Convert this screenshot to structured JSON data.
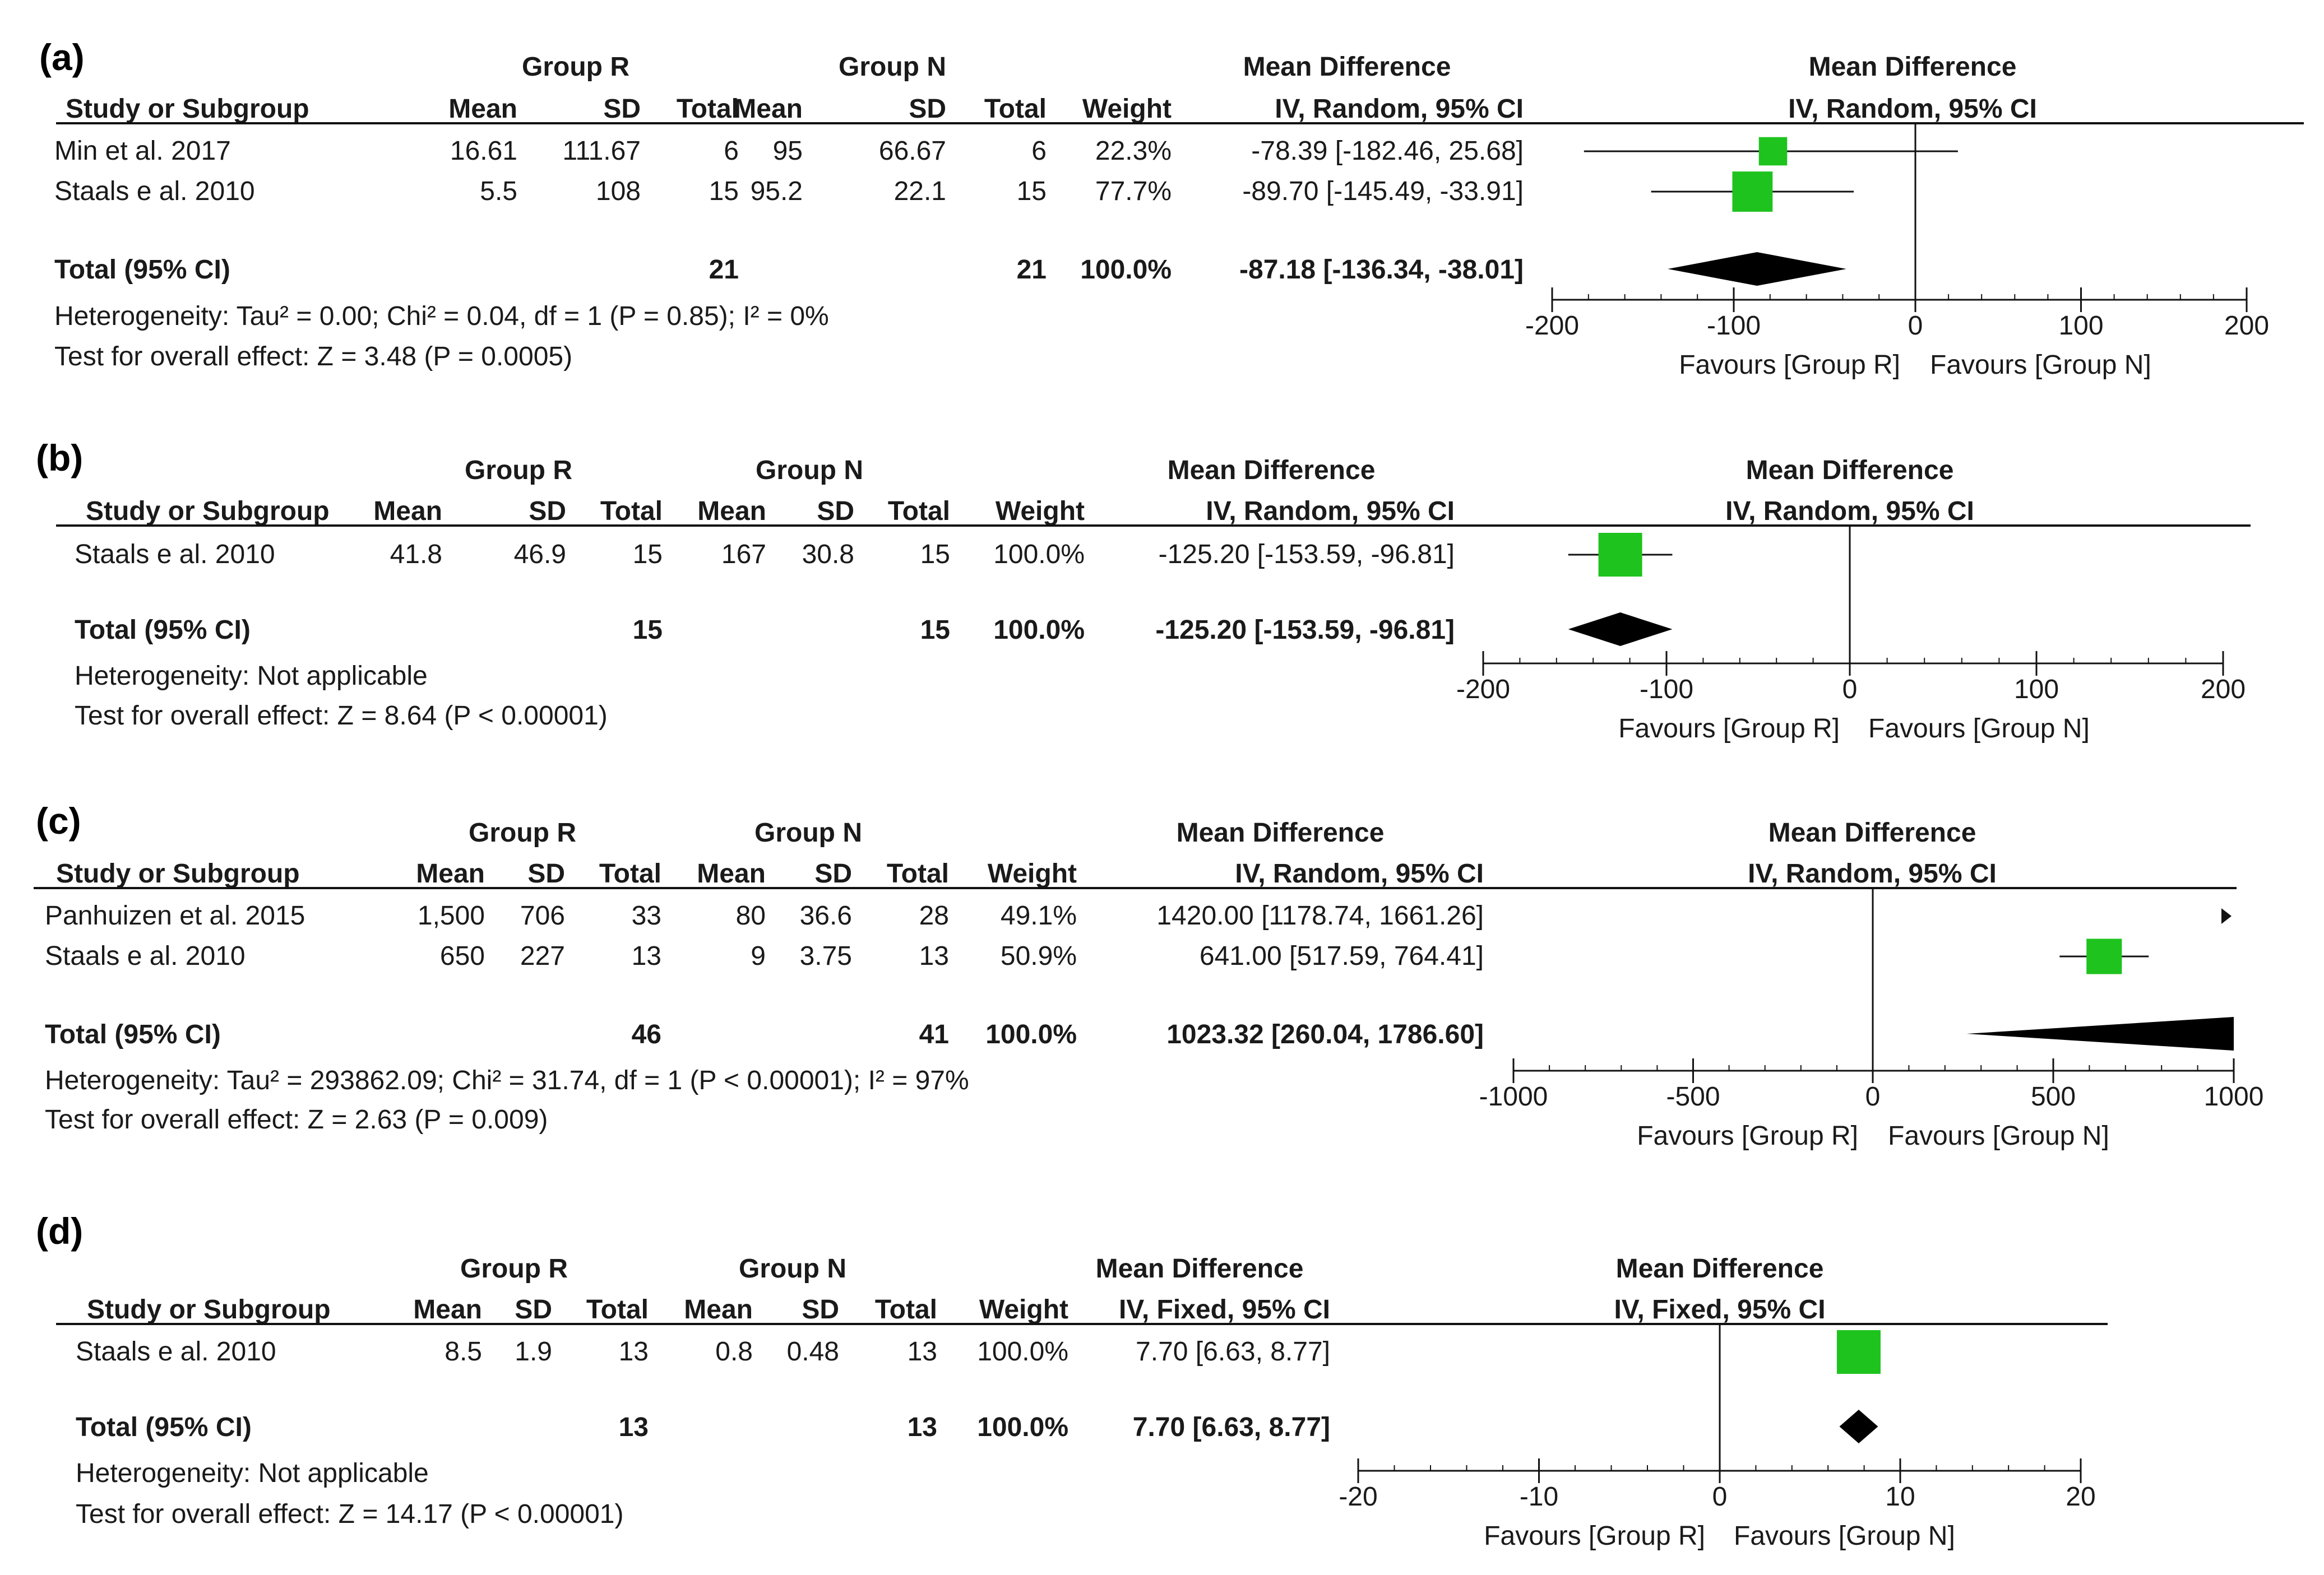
{
  "page": {
    "title": "Forest plots of mean difference, Group R vs Group N"
  },
  "chart_data": [
    {
      "type": "forest",
      "label": "(a)",
      "effect_header": "Mean Difference",
      "method": "IV, Random, 95% CI",
      "studies": [
        {
          "name": "Min et al. 2017",
          "mean_r": "16.61",
          "sd_r": "111.67",
          "total_r": "6",
          "mean_n": "95",
          "sd_n": "66.67",
          "total_n": "6",
          "weight": "22.3%",
          "ci_text": "-78.39 [-182.46, 25.68]",
          "md": -78.39,
          "lo": -182.46,
          "hi": 25.68,
          "w": 22.3
        },
        {
          "name": "Staals e al. 2010",
          "mean_r": "5.5",
          "sd_r": "108",
          "total_r": "15",
          "mean_n": "95.2",
          "sd_n": "22.1",
          "total_n": "15",
          "weight": "77.7%",
          "ci_text": "-89.70 [-145.49, -33.91]",
          "md": -89.7,
          "lo": -145.49,
          "hi": -33.91,
          "w": 77.7
        }
      ],
      "total": {
        "label": "Total (95% CI)",
        "total_r": "21",
        "total_n": "21",
        "weight": "100.0%",
        "ci_text": "-87.18 [-136.34, -38.01]",
        "md": -87.18,
        "lo": -136.34,
        "hi": -38.01
      },
      "heterogeneity": "Heterogeneity: Tau² = 0.00; Chi² = 0.04, df = 1 (P = 0.85); I² = 0%",
      "overall": "Test for overall effect: Z = 3.48 (P = 0.0005)",
      "axis": {
        "min": -200,
        "max": 200,
        "ticks": [
          -200,
          -100,
          0,
          100,
          200
        ],
        "tick_labels": [
          "-200",
          "-100",
          "0",
          "100",
          "200"
        ]
      },
      "favours_left": "Favours [Group R]",
      "favours_right": "Favours [Group N]"
    },
    {
      "type": "forest",
      "label": "(b)",
      "effect_header": "Mean Difference",
      "method": "IV, Random, 95% CI",
      "studies": [
        {
          "name": "Staals e al. 2010",
          "mean_r": "41.8",
          "sd_r": "46.9",
          "total_r": "15",
          "mean_n": "167",
          "sd_n": "30.8",
          "total_n": "15",
          "weight": "100.0%",
          "ci_text": "-125.20 [-153.59, -96.81]",
          "md": -125.2,
          "lo": -153.59,
          "hi": -96.81,
          "w": 100.0
        }
      ],
      "total": {
        "label": "Total (95% CI)",
        "total_r": "15",
        "total_n": "15",
        "weight": "100.0%",
        "ci_text": "-125.20 [-153.59, -96.81]",
        "md": -125.2,
        "lo": -153.59,
        "hi": -96.81
      },
      "heterogeneity": "Heterogeneity: Not applicable",
      "overall": "Test for overall effect: Z = 8.64 (P < 0.00001)",
      "axis": {
        "min": -200,
        "max": 200,
        "ticks": [
          -200,
          -100,
          0,
          100,
          200
        ],
        "tick_labels": [
          "-200",
          "-100",
          "0",
          "100",
          "200"
        ]
      },
      "favours_left": "Favours [Group R]",
      "favours_right": "Favours [Group N]"
    },
    {
      "type": "forest",
      "label": "(c)",
      "effect_header": "Mean Difference",
      "method": "IV, Random, 95% CI",
      "studies": [
        {
          "name": "Panhuizen et al. 2015",
          "mean_r": "1,500",
          "sd_r": "706",
          "total_r": "33",
          "mean_n": "80",
          "sd_n": "36.6",
          "total_n": "28",
          "weight": "49.1%",
          "ci_text": "1420.00 [1178.74, 1661.26]",
          "md": 1420.0,
          "lo": 1178.74,
          "hi": 1661.26,
          "w": 49.1
        },
        {
          "name": "Staals e al. 2010",
          "mean_r": "650",
          "sd_r": "227",
          "total_r": "13",
          "mean_n": "9",
          "sd_n": "3.75",
          "total_n": "13",
          "weight": "50.9%",
          "ci_text": "641.00 [517.59, 764.41]",
          "md": 641.0,
          "lo": 517.59,
          "hi": 764.41,
          "w": 50.9
        }
      ],
      "total": {
        "label": "Total (95% CI)",
        "total_r": "46",
        "total_n": "41",
        "weight": "100.0%",
        "ci_text": "1023.32 [260.04, 1786.60]",
        "md": 1023.32,
        "lo": 260.04,
        "hi": 1786.6
      },
      "heterogeneity": "Heterogeneity: Tau² = 293862.09; Chi² = 31.74, df = 1 (P < 0.00001); I² = 97%",
      "overall": "Test for overall effect: Z = 2.63 (P = 0.009)",
      "axis": {
        "min": -1000,
        "max": 1000,
        "ticks": [
          -1000,
          -500,
          0,
          500,
          1000
        ],
        "tick_labels": [
          "-1000",
          "-500",
          "0",
          "500",
          "1000"
        ]
      },
      "favours_left": "Favours [Group R]",
      "favours_right": "Favours [Group N]"
    },
    {
      "type": "forest",
      "label": "(d)",
      "effect_header": "Mean Difference",
      "method": "IV, Fixed, 95% CI",
      "studies": [
        {
          "name": "Staals e al. 2010",
          "mean_r": "8.5",
          "sd_r": "1.9",
          "total_r": "13",
          "mean_n": "0.8",
          "sd_n": "0.48",
          "total_n": "13",
          "weight": "100.0%",
          "ci_text": "7.70 [6.63, 8.77]",
          "md": 7.7,
          "lo": 6.63,
          "hi": 8.77,
          "w": 100.0
        }
      ],
      "total": {
        "label": "Total (95% CI)",
        "total_r": "13",
        "total_n": "13",
        "weight": "100.0%",
        "ci_text": "7.70 [6.63, 8.77]",
        "md": 7.7,
        "lo": 6.63,
        "hi": 8.77
      },
      "heterogeneity": "Heterogeneity: Not applicable",
      "overall": "Test for overall effect: Z = 14.17 (P < 0.00001)",
      "axis": {
        "min": -20,
        "max": 20,
        "ticks": [
          -20,
          -10,
          0,
          10,
          20
        ],
        "tick_labels": [
          "-20",
          "-10",
          "0",
          "10",
          "20"
        ]
      },
      "favours_left": "Favours [Group R]",
      "favours_right": "Favours [Group N]"
    }
  ],
  "headers": {
    "study": "Study or Subgroup",
    "group_r": "Group R",
    "group_n": "Group N",
    "mean": "Mean",
    "sd": "SD",
    "total": "Total",
    "weight": "Weight"
  },
  "colors": {
    "square": "#1ec31e",
    "diamond": "#000000",
    "line": "#111111"
  }
}
